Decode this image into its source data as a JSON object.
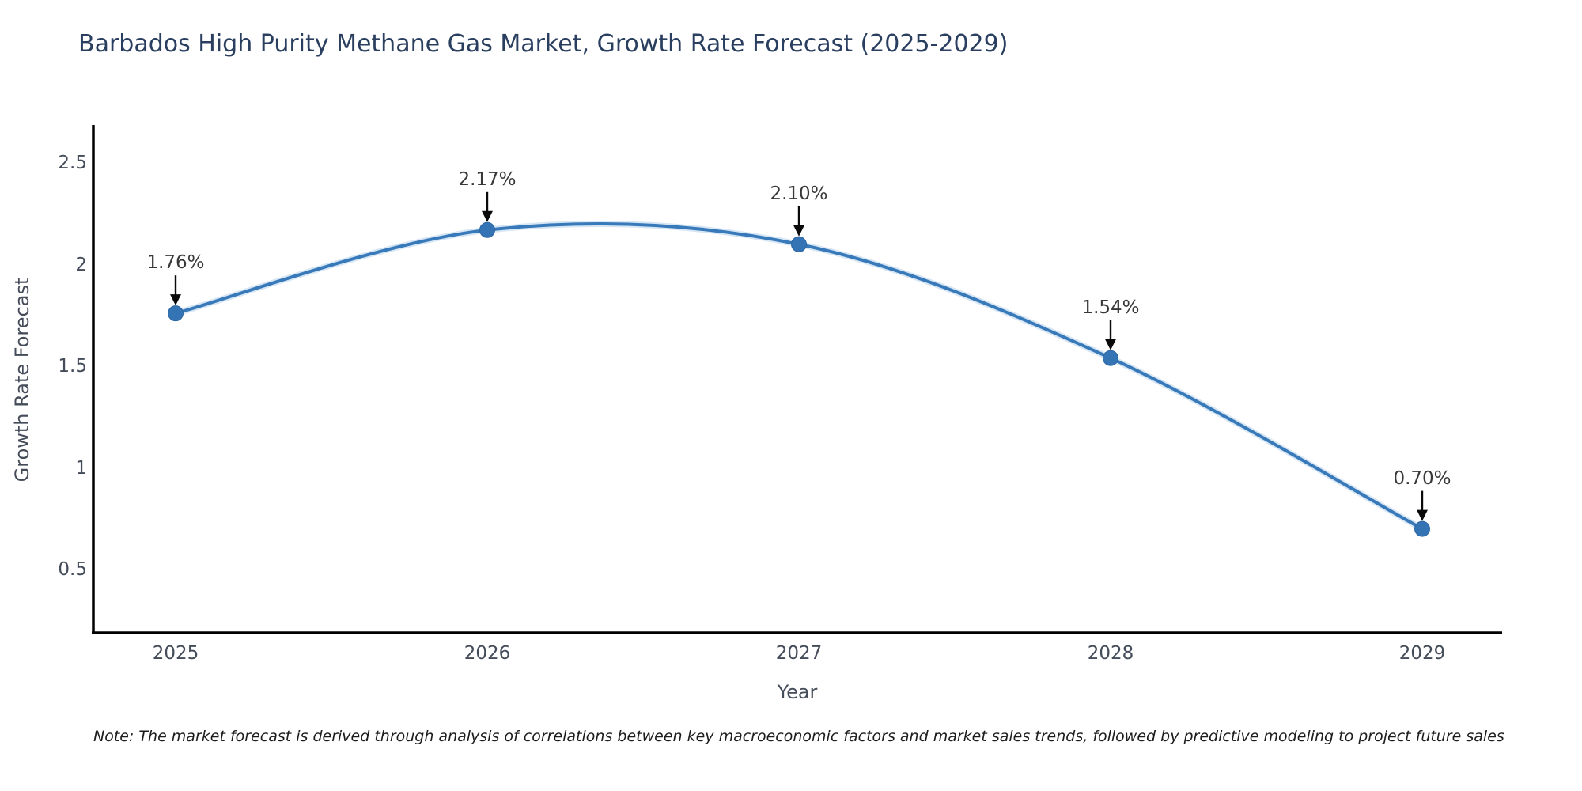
{
  "note": "Note: The market forecast is derived through analysis of correlations between key macroeconomic factors and market sales trends, followed by predictive modeling to project future sales",
  "colors": {
    "line": "#3879b9",
    "line_glow": "#bcd6ec",
    "marker_fill": "#3474b4",
    "marker_edge": "#2d66a2",
    "axis_line": "#000000",
    "title_text": "#2a3f5f",
    "tick_text": "#444b59",
    "annotation_text": "#383838",
    "arrow": "#0a0a0a",
    "background": "#ffffff"
  },
  "chart_data": {
    "type": "line",
    "title": "Barbados High Purity Methane Gas Market, Growth Rate Forecast (2025-2029)",
    "xlabel": "Year",
    "ylabel": "Growth Rate Forecast",
    "categories": [
      "2025",
      "2026",
      "2027",
      "2028",
      "2029"
    ],
    "series": [
      {
        "name": "Growth Rate Forecast",
        "values": [
          1.76,
          2.17,
          2.1,
          1.54,
          0.7
        ]
      }
    ],
    "point_labels": [
      "1.76%",
      "2.17%",
      "2.10%",
      "1.54%",
      "0.70%"
    ],
    "yticks": [
      2.5,
      2,
      1.5,
      1,
      0.5
    ],
    "ylim": [
      0.19,
      2.68
    ],
    "grid": false,
    "legend": false,
    "line_shape": "spline",
    "point_annotations_with_arrows": true
  }
}
